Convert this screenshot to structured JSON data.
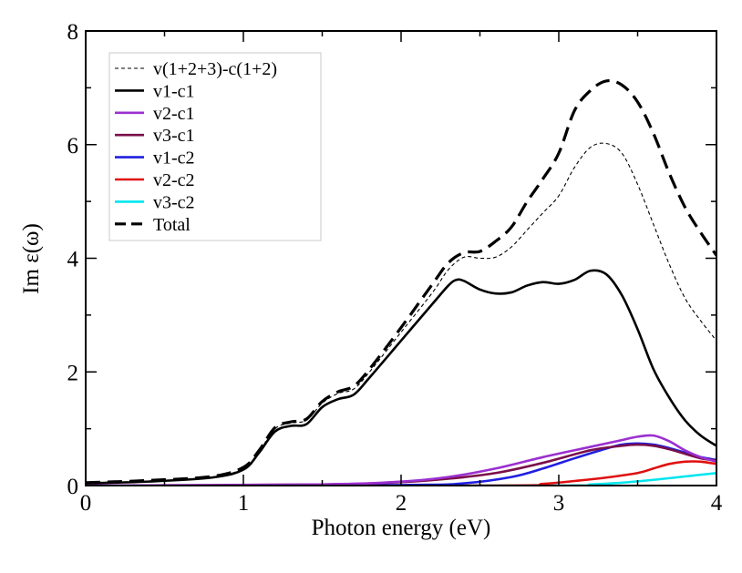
{
  "chart_data": {
    "type": "line",
    "title": "",
    "xlabel": "Photon energy (eV)",
    "ylabel": "Im ε(ω)",
    "xlim": [
      0,
      4
    ],
    "ylim": [
      0,
      8
    ],
    "xticks": [
      0,
      1,
      2,
      3,
      4
    ],
    "yticks": [
      0,
      2,
      4,
      6,
      8
    ],
    "xtick_labels": [
      "0",
      "1",
      "2",
      "3",
      "4"
    ],
    "ytick_labels": [
      "0",
      "2",
      "4",
      "6",
      "8"
    ],
    "grid": false,
    "legend_position": "top-left",
    "series": [
      {
        "name": "v(1+2+3)-c(1+2)",
        "color": "#000000",
        "style": "dashed-thin",
        "x": [
          0,
          0.4,
          0.8,
          1.0,
          1.1,
          1.2,
          1.3,
          1.4,
          1.5,
          1.6,
          1.7,
          1.8,
          2.0,
          2.2,
          2.3,
          2.4,
          2.5,
          2.6,
          2.7,
          2.8,
          2.9,
          3.0,
          3.1,
          3.2,
          3.3,
          3.4,
          3.5,
          3.6,
          3.7,
          3.8,
          3.9,
          4.0
        ],
        "y": [
          0.05,
          0.08,
          0.15,
          0.3,
          0.6,
          1.0,
          1.1,
          1.15,
          1.45,
          1.62,
          1.7,
          2.0,
          2.7,
          3.4,
          3.8,
          4.02,
          4.0,
          4.02,
          4.2,
          4.5,
          4.8,
          5.1,
          5.6,
          5.95,
          6.02,
          5.85,
          5.3,
          4.6,
          3.9,
          3.3,
          2.9,
          2.55
        ]
      },
      {
        "name": "v1-c1",
        "color": "#000000",
        "style": "solid",
        "x": [
          0,
          0.4,
          0.8,
          1.0,
          1.1,
          1.2,
          1.3,
          1.4,
          1.5,
          1.6,
          1.7,
          1.8,
          2.0,
          2.2,
          2.3,
          2.35,
          2.4,
          2.5,
          2.6,
          2.7,
          2.8,
          2.9,
          3.0,
          3.1,
          3.2,
          3.3,
          3.4,
          3.5,
          3.6,
          3.7,
          3.8,
          3.9,
          4.0
        ],
        "y": [
          0.04,
          0.07,
          0.14,
          0.28,
          0.58,
          0.95,
          1.05,
          1.08,
          1.38,
          1.52,
          1.6,
          1.9,
          2.55,
          3.2,
          3.52,
          3.62,
          3.6,
          3.45,
          3.38,
          3.4,
          3.52,
          3.58,
          3.55,
          3.62,
          3.78,
          3.72,
          3.35,
          2.75,
          2.05,
          1.55,
          1.15,
          0.88,
          0.7
        ]
      },
      {
        "name": "v2-c1",
        "color": "#9b30d0",
        "style": "solid",
        "x": [
          0,
          1.5,
          2.0,
          2.3,
          2.6,
          2.9,
          3.2,
          3.4,
          3.5,
          3.6,
          3.7,
          3.8,
          3.9,
          4.0
        ],
        "y": [
          0.0,
          0.02,
          0.07,
          0.15,
          0.3,
          0.5,
          0.68,
          0.8,
          0.86,
          0.88,
          0.78,
          0.62,
          0.5,
          0.42
        ]
      },
      {
        "name": "v3-c1",
        "color": "#7a0f4a",
        "style": "solid",
        "x": [
          0,
          1.5,
          2.0,
          2.3,
          2.6,
          2.9,
          3.2,
          3.4,
          3.5,
          3.6,
          3.7,
          3.8,
          3.9,
          4.0
        ],
        "y": [
          0.0,
          0.02,
          0.06,
          0.12,
          0.22,
          0.4,
          0.62,
          0.7,
          0.72,
          0.7,
          0.64,
          0.56,
          0.48,
          0.44
        ]
      },
      {
        "name": "v1-c2",
        "color": "#1f1fe0",
        "style": "solid",
        "x": [
          0,
          2.0,
          2.4,
          2.7,
          2.9,
          3.1,
          3.3,
          3.4,
          3.5,
          3.6,
          3.7,
          3.8,
          3.9,
          4.0
        ],
        "y": [
          0.0,
          0.01,
          0.04,
          0.15,
          0.3,
          0.48,
          0.65,
          0.72,
          0.74,
          0.72,
          0.66,
          0.58,
          0.5,
          0.45
        ]
      },
      {
        "name": "v2-c2",
        "color": "#e01010",
        "style": "solid",
        "x": [
          0,
          2.6,
          2.9,
          3.1,
          3.3,
          3.5,
          3.6,
          3.7,
          3.8,
          3.9,
          4.0
        ],
        "y": [
          0.0,
          0.0,
          0.03,
          0.08,
          0.14,
          0.22,
          0.3,
          0.38,
          0.42,
          0.42,
          0.38
        ]
      },
      {
        "name": "v3-c2",
        "color": "#00e5ee",
        "style": "solid",
        "x": [
          0,
          3.0,
          3.2,
          3.4,
          3.6,
          3.8,
          4.0
        ],
        "y": [
          0.0,
          0.0,
          0.02,
          0.05,
          0.1,
          0.16,
          0.22
        ]
      },
      {
        "name": "Total",
        "color": "#000000",
        "style": "dashed-thick",
        "x": [
          0,
          0.4,
          0.8,
          1.0,
          1.1,
          1.2,
          1.3,
          1.4,
          1.5,
          1.6,
          1.7,
          1.8,
          2.0,
          2.2,
          2.3,
          2.4,
          2.5,
          2.6,
          2.7,
          2.8,
          2.9,
          3.0,
          3.1,
          3.2,
          3.3,
          3.4,
          3.5,
          3.6,
          3.7,
          3.8,
          3.9,
          4.0
        ],
        "y": [
          0.05,
          0.09,
          0.16,
          0.32,
          0.62,
          1.02,
          1.12,
          1.17,
          1.48,
          1.65,
          1.75,
          2.05,
          2.78,
          3.55,
          3.92,
          4.1,
          4.12,
          4.3,
          4.55,
          5.0,
          5.4,
          5.85,
          6.6,
          6.95,
          7.12,
          7.05,
          6.75,
          6.2,
          5.5,
          4.9,
          4.45,
          4.05
        ]
      }
    ]
  }
}
